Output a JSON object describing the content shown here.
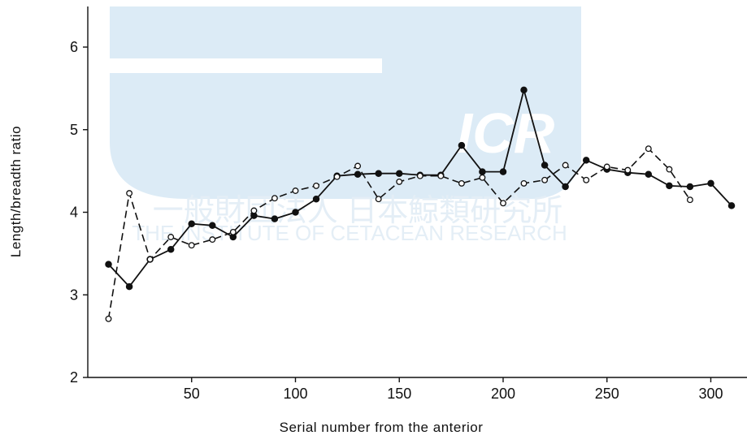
{
  "watermark": {
    "logo_text": "ICR",
    "org_name_ja": "一般財団法人 日本鯨類研究所",
    "org_name_en": "THE INSTITUTE OF CETACEAN RESEARCH",
    "color": "#dcebf6"
  },
  "chart_data": {
    "type": "line",
    "title": "",
    "xlabel": "Serial number from the anterior",
    "ylabel": "Length/breadth ratio",
    "xlim": [
      5,
      315
    ],
    "ylim": [
      2,
      6.5
    ],
    "x_ticks": [
      50,
      100,
      150,
      200,
      250,
      300
    ],
    "y_ticks": [
      2,
      3,
      4,
      5,
      6
    ],
    "grid": false,
    "series": [
      {
        "style": "solid line, filled circle markers",
        "color": "#111111",
        "points": [
          [
            10,
            3.37
          ],
          [
            20,
            3.1
          ],
          [
            30,
            3.43
          ],
          [
            40,
            3.55
          ],
          [
            50,
            3.86
          ],
          [
            60,
            3.84
          ],
          [
            70,
            3.7
          ],
          [
            80,
            3.96
          ],
          [
            90,
            3.92
          ],
          [
            100,
            4.0
          ],
          [
            110,
            4.16
          ],
          [
            120,
            4.44
          ],
          [
            130,
            4.46
          ],
          [
            140,
            4.47
          ],
          [
            150,
            4.47
          ],
          [
            160,
            4.45
          ],
          [
            170,
            4.45
          ],
          [
            180,
            4.81
          ],
          [
            190,
            4.49
          ],
          [
            200,
            4.49
          ],
          [
            210,
            5.48
          ],
          [
            220,
            4.57
          ],
          [
            230,
            4.31
          ],
          [
            240,
            4.63
          ],
          [
            250,
            4.52
          ],
          [
            260,
            4.48
          ],
          [
            270,
            4.46
          ],
          [
            280,
            4.32
          ],
          [
            290,
            4.31
          ],
          [
            300,
            4.35
          ],
          [
            310,
            4.08
          ]
        ]
      },
      {
        "style": "dashed line, open circle markers",
        "color": "#111111",
        "points": [
          [
            10,
            2.71
          ],
          [
            20,
            4.23
          ],
          [
            30,
            3.43
          ],
          [
            40,
            3.7
          ],
          [
            50,
            3.6
          ],
          [
            60,
            3.67
          ],
          [
            70,
            3.76
          ],
          [
            80,
            4.02
          ],
          [
            90,
            4.17
          ],
          [
            100,
            4.26
          ],
          [
            110,
            4.32
          ],
          [
            120,
            4.43
          ],
          [
            130,
            4.56
          ],
          [
            140,
            4.16
          ],
          [
            150,
            4.37
          ],
          [
            160,
            4.44
          ],
          [
            170,
            4.44
          ],
          [
            180,
            4.35
          ],
          [
            190,
            4.42
          ],
          [
            200,
            4.11
          ],
          [
            210,
            4.35
          ],
          [
            220,
            4.39
          ],
          [
            230,
            4.57
          ],
          [
            240,
            4.39
          ],
          [
            250,
            4.55
          ],
          [
            260,
            4.51
          ],
          [
            270,
            4.77
          ],
          [
            280,
            4.52
          ],
          [
            290,
            4.15
          ]
        ]
      }
    ]
  }
}
